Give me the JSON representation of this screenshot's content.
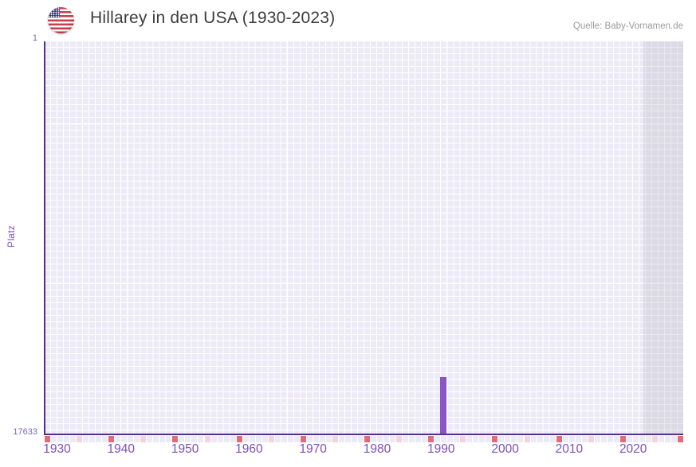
{
  "header": {
    "title": "Hillarey in den USA (1930-2023)",
    "source": "Quelle: Baby-Vornamen.de",
    "flag_icon": "us-flag-icon"
  },
  "chart_data": {
    "type": "bar",
    "title": "Hillarey in den USA (1930-2023)",
    "subject_name": "Hillarey",
    "country": "USA",
    "xlabel": "",
    "ylabel": "Platz",
    "x_range": [
      1930,
      2023
    ],
    "x_ticks": [
      "1930",
      "1940",
      "1950",
      "1960",
      "1970",
      "1980",
      "1990",
      "2000",
      "2010",
      "2020"
    ],
    "y_axis": {
      "top_tick": "1",
      "bottom_tick": "17633",
      "min": 1,
      "max": 17633,
      "inverted": true,
      "note": "rank 1 at top, rank 17633 at bottom"
    },
    "grid": true,
    "legend_position": "none",
    "series": [
      {
        "name": "Hillarey",
        "points": [
          {
            "year": 1990,
            "rank": 15100
          }
        ]
      }
    ],
    "future_shade": {
      "start_year": 2022,
      "end_year": 2023
    },
    "axis_marker_row": {
      "red_cell_indices": [
        0,
        10,
        20,
        30,
        40,
        50,
        60,
        70,
        80,
        90,
        99
      ],
      "pink_cell_indices": [
        5,
        15,
        25,
        35,
        45,
        55,
        65,
        75,
        85,
        95
      ],
      "total_cells": 100
    }
  },
  "colors": {
    "bar": "#8c54c6",
    "axis_line": "#53307f",
    "grid_cell": "#edeaf7",
    "future_shade": "rgba(186,182,200,0.32)",
    "x_tick_label": "#7c50b6",
    "y_tick_label": "#7a68ae",
    "red_marker": "#e16c79",
    "pink_marker": "#f5d3de",
    "title_text": "#3c3c3c",
    "source_text": "#9b9b9b",
    "flag_red": "#c8404e",
    "flag_blue": "#3f3e75"
  }
}
